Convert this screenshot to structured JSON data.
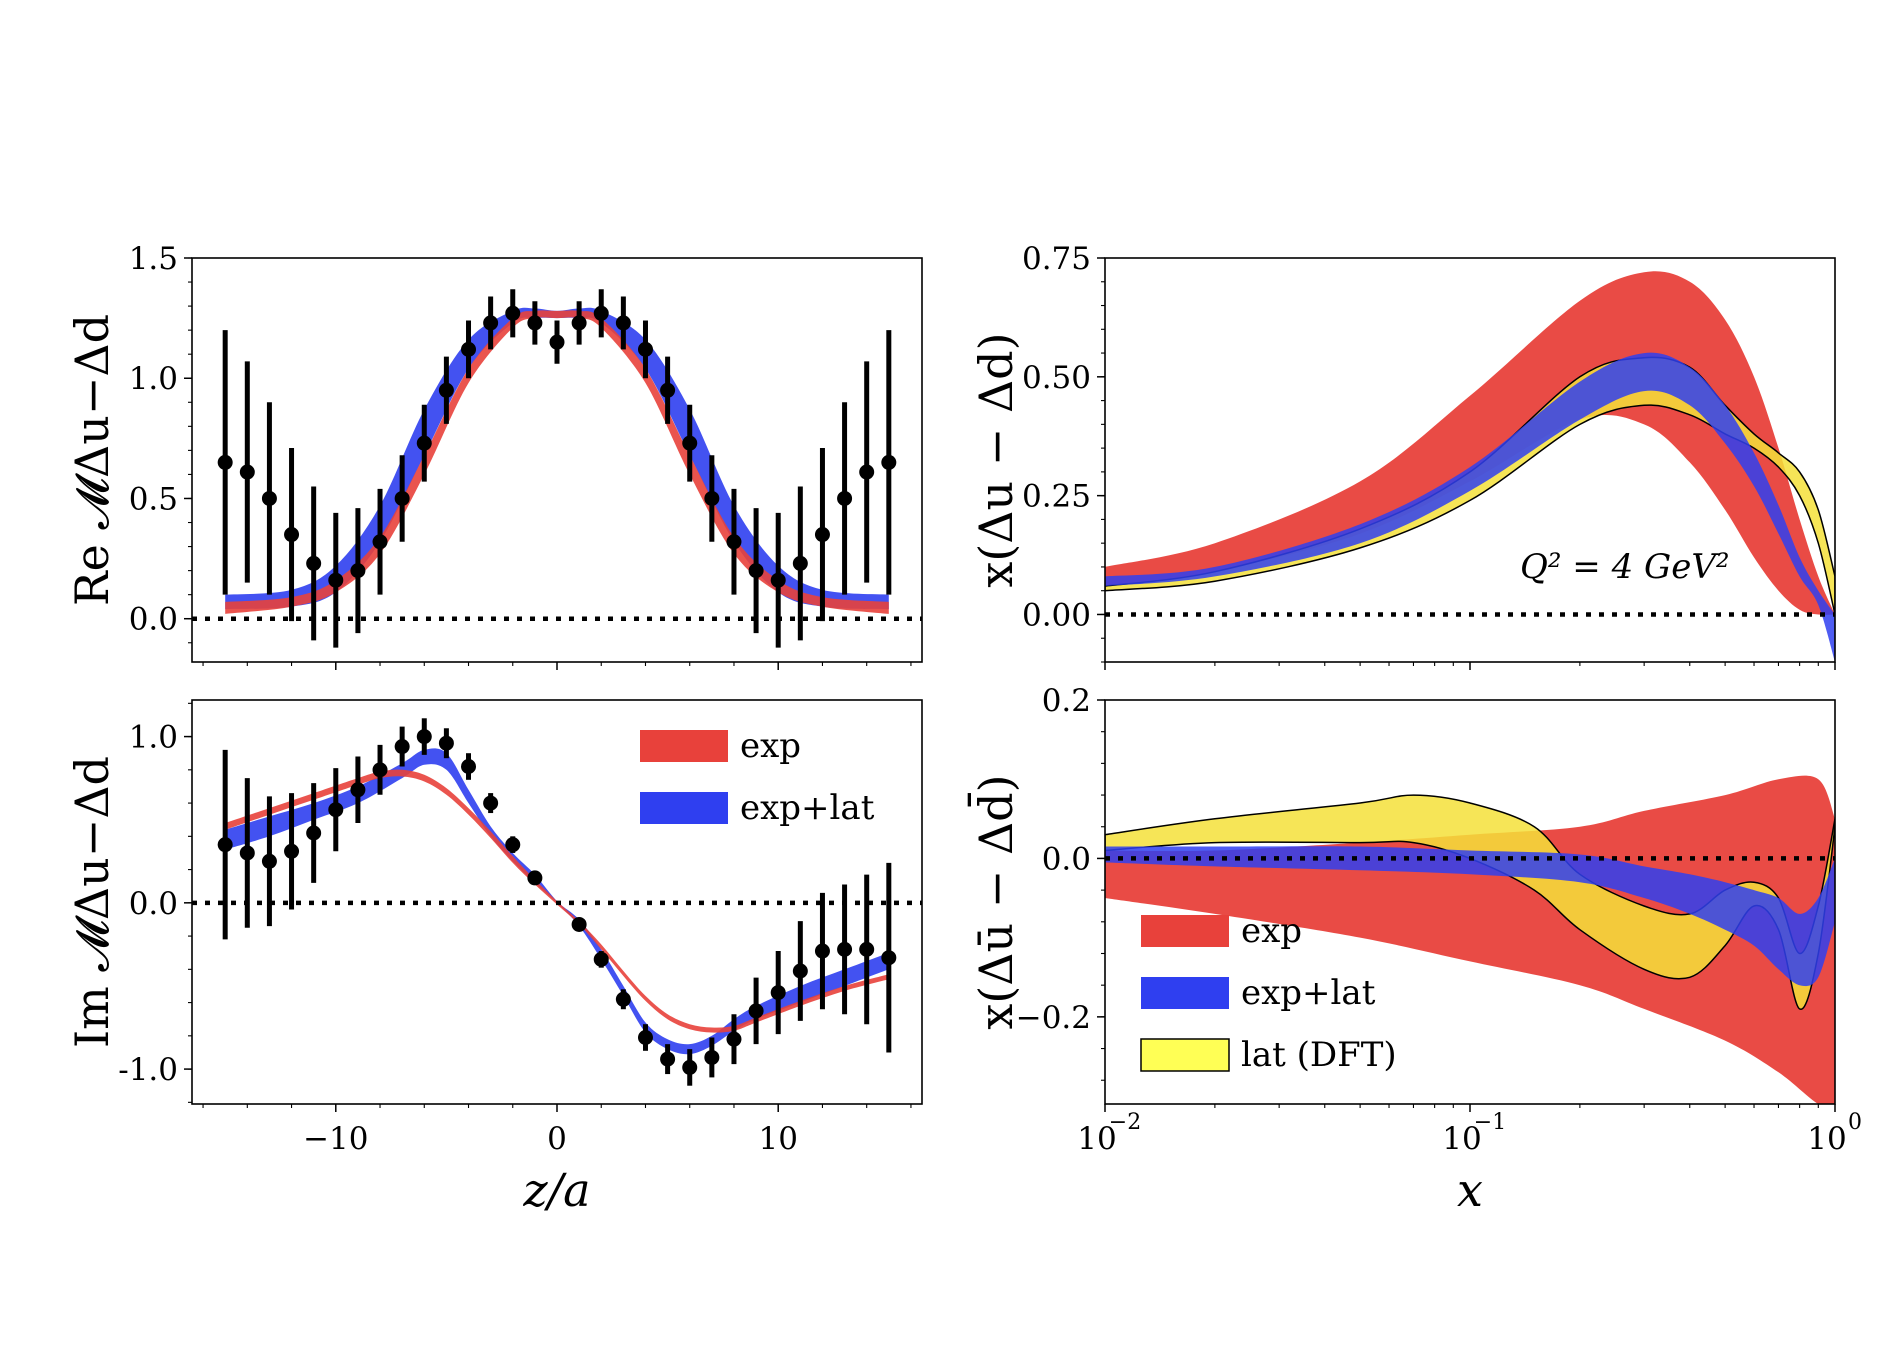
{
  "colors": {
    "exp": "#e8413b",
    "exp_lat": "#2f3ff0",
    "lat_dft": "#f5e13a",
    "lat_dft_light": "#ffff55",
    "points": "#000000"
  },
  "chart_data": [
    {
      "id": "re-matrix-element",
      "type": "line",
      "ylabel": "Re 𝓜Δu−Δd",
      "xlabel": "",
      "xlim": [
        -16.5,
        16.5
      ],
      "ylim": [
        -0.18,
        1.5
      ],
      "yticks": [
        0.0,
        0.5,
        1.0,
        1.5
      ],
      "yticklabels": [
        "0.0",
        "0.5",
        "1.0",
        "1.5"
      ],
      "xticks": [
        -10,
        0,
        10
      ],
      "grid": false,
      "zero_line": true,
      "points": {
        "x": [
          -15,
          -14,
          -13,
          -12,
          -11,
          -10,
          -9,
          -8,
          -7,
          -6,
          -5,
          -4,
          -3,
          -2,
          -1,
          0,
          1,
          2,
          3,
          4,
          5,
          6,
          7,
          8,
          9,
          10,
          11,
          12,
          13,
          14,
          15
        ],
        "y": [
          0.65,
          0.61,
          0.5,
          0.35,
          0.23,
          0.16,
          0.2,
          0.32,
          0.5,
          0.73,
          0.95,
          1.12,
          1.23,
          1.27,
          1.23,
          1.15,
          1.23,
          1.27,
          1.23,
          1.12,
          0.95,
          0.73,
          0.5,
          0.32,
          0.2,
          0.16,
          0.23,
          0.35,
          0.5,
          0.61,
          0.65
        ],
        "err": [
          0.55,
          0.46,
          0.4,
          0.36,
          0.32,
          0.28,
          0.26,
          0.22,
          0.18,
          0.16,
          0.14,
          0.12,
          0.11,
          0.1,
          0.09,
          0.09,
          0.09,
          0.1,
          0.11,
          0.12,
          0.14,
          0.16,
          0.18,
          0.22,
          0.26,
          0.28,
          0.32,
          0.36,
          0.4,
          0.46,
          0.55
        ]
      },
      "series": [
        {
          "name": "exp+lat",
          "x": [
            -15,
            -12,
            -10,
            -8,
            -6,
            -4,
            -2,
            -1,
            0,
            1,
            2,
            4,
            6,
            8,
            10,
            12,
            15
          ],
          "lo": [
            0.04,
            0.05,
            0.11,
            0.32,
            0.68,
            1.04,
            1.23,
            1.25,
            1.25,
            1.25,
            1.23,
            1.04,
            0.68,
            0.32,
            0.11,
            0.05,
            0.04
          ],
          "hi": [
            0.1,
            0.12,
            0.22,
            0.47,
            0.87,
            1.16,
            1.28,
            1.29,
            1.28,
            1.29,
            1.28,
            1.16,
            0.87,
            0.47,
            0.22,
            0.12,
            0.1
          ]
        },
        {
          "name": "exp",
          "x": [
            -15,
            -12,
            -10,
            -8,
            -6,
            -4,
            -2,
            -1,
            0,
            1,
            2,
            4,
            6,
            8,
            10,
            12,
            15
          ],
          "lo": [
            0.02,
            0.05,
            0.11,
            0.27,
            0.6,
            0.98,
            1.21,
            1.25,
            1.25,
            1.25,
            1.21,
            0.98,
            0.6,
            0.27,
            0.11,
            0.05,
            0.02
          ],
          "hi": [
            0.07,
            0.09,
            0.16,
            0.34,
            0.68,
            1.04,
            1.25,
            1.28,
            1.28,
            1.28,
            1.25,
            1.04,
            0.68,
            0.34,
            0.16,
            0.09,
            0.07
          ]
        }
      ]
    },
    {
      "id": "im-matrix-element",
      "type": "line",
      "ylabel": "Im 𝓜Δu−Δd",
      "xlabel": "z/a",
      "xlim": [
        -16.5,
        16.5
      ],
      "ylim": [
        -1.21,
        1.22
      ],
      "yticks": [
        -1.0,
        0.0,
        1.0
      ],
      "yticklabels": [
        "-1.0",
        "0.0",
        "1.0"
      ],
      "xticks": [
        -10,
        0,
        10
      ],
      "xticklabels": [
        "−10",
        "0",
        "10"
      ],
      "grid": false,
      "zero_line": true,
      "legend_position": "upper right",
      "legend": [
        "exp",
        "exp+lat"
      ],
      "points": {
        "x": [
          -15,
          -14,
          -13,
          -12,
          -11,
          -10,
          -9,
          -8,
          -7,
          -6,
          -5,
          -4,
          -3,
          -2,
          -1,
          1,
          2,
          3,
          4,
          5,
          6,
          7,
          8,
          9,
          10,
          11,
          12,
          13,
          14,
          15
        ],
        "y": [
          0.35,
          0.3,
          0.25,
          0.31,
          0.42,
          0.56,
          0.68,
          0.8,
          0.94,
          1.0,
          0.96,
          0.82,
          0.6,
          0.35,
          0.15,
          -0.13,
          -0.34,
          -0.58,
          -0.81,
          -0.94,
          -0.99,
          -0.93,
          -0.82,
          -0.65,
          -0.54,
          -0.41,
          -0.29,
          -0.28,
          -0.28,
          -0.33
        ],
        "err": [
          0.57,
          0.45,
          0.39,
          0.35,
          0.3,
          0.25,
          0.2,
          0.15,
          0.12,
          0.11,
          0.09,
          0.08,
          0.06,
          0.05,
          0.04,
          0.04,
          0.05,
          0.06,
          0.08,
          0.09,
          0.11,
          0.12,
          0.15,
          0.2,
          0.25,
          0.3,
          0.35,
          0.39,
          0.45,
          0.57
        ]
      },
      "series": [
        {
          "name": "exp+lat",
          "x": [
            -15,
            -13,
            -11,
            -9,
            -7,
            -6,
            -5,
            -4,
            -3,
            -2,
            -1,
            0,
            1,
            2,
            3,
            4,
            5,
            6,
            7,
            8,
            9,
            11,
            13,
            15
          ],
          "lo": [
            0.32,
            0.4,
            0.5,
            0.6,
            0.75,
            0.83,
            0.8,
            0.6,
            0.4,
            0.25,
            0.12,
            0.0,
            -0.14,
            -0.34,
            -0.56,
            -0.78,
            -0.88,
            -0.91,
            -0.86,
            -0.77,
            -0.7,
            -0.6,
            -0.5,
            -0.4
          ],
          "hi": [
            0.44,
            0.52,
            0.6,
            0.7,
            0.84,
            0.92,
            0.9,
            0.68,
            0.46,
            0.3,
            0.17,
            0.01,
            -0.1,
            -0.28,
            -0.5,
            -0.72,
            -0.82,
            -0.85,
            -0.8,
            -0.7,
            -0.62,
            -0.5,
            -0.4,
            -0.3
          ]
        },
        {
          "name": "exp",
          "x": [
            -15,
            -13,
            -11,
            -9,
            -8,
            -7,
            -6,
            -5,
            -4,
            -3,
            -2,
            -1,
            0,
            1,
            2,
            3,
            4,
            5,
            6,
            7,
            8,
            9,
            11,
            13,
            15
          ],
          "lo": [
            0.44,
            0.53,
            0.62,
            0.71,
            0.75,
            0.76,
            0.73,
            0.65,
            0.53,
            0.39,
            0.24,
            0.11,
            -0.01,
            -0.13,
            -0.28,
            -0.44,
            -0.59,
            -0.7,
            -0.76,
            -0.78,
            -0.77,
            -0.72,
            -0.62,
            -0.53,
            -0.46
          ],
          "hi": [
            0.48,
            0.57,
            0.66,
            0.75,
            0.79,
            0.8,
            0.77,
            0.69,
            0.57,
            0.43,
            0.28,
            0.14,
            0.01,
            -0.11,
            -0.25,
            -0.41,
            -0.56,
            -0.67,
            -0.73,
            -0.75,
            -0.74,
            -0.69,
            -0.59,
            -0.5,
            -0.43
          ]
        }
      ]
    },
    {
      "id": "x-delta-u-minus-delta-d",
      "type": "area",
      "ylabel": "x(Δu − Δd)",
      "xlabel": "",
      "xscale": "log",
      "xlim": [
        0.01,
        1
      ],
      "ylim": [
        -0.1,
        0.75
      ],
      "yticks": [
        0.0,
        0.25,
        0.5,
        0.75
      ],
      "yticklabels": [
        "0.00",
        "0.25",
        "0.50",
        "0.75"
      ],
      "grid": false,
      "zero_line": true,
      "annotation": "Q² = 4 GeV²",
      "series": [
        {
          "name": "exp",
          "x": [
            0.01,
            0.02,
            0.05,
            0.1,
            0.2,
            0.3,
            0.4,
            0.5,
            0.6,
            0.7,
            0.8,
            0.9,
            1.0
          ],
          "lo": [
            0.06,
            0.09,
            0.17,
            0.28,
            0.41,
            0.4,
            0.32,
            0.22,
            0.12,
            0.05,
            0.01,
            0.0,
            0.0
          ],
          "hi": [
            0.1,
            0.15,
            0.28,
            0.46,
            0.66,
            0.72,
            0.7,
            0.62,
            0.5,
            0.35,
            0.2,
            0.08,
            0.0
          ]
        },
        {
          "name": "lat (DFT)",
          "x": [
            0.01,
            0.02,
            0.05,
            0.1,
            0.2,
            0.3,
            0.4,
            0.5,
            0.6,
            0.7,
            0.8,
            0.9,
            1.0
          ],
          "lo": [
            0.05,
            0.07,
            0.14,
            0.24,
            0.4,
            0.44,
            0.42,
            0.38,
            0.35,
            0.31,
            0.25,
            0.15,
            0.0
          ],
          "hi": [
            0.06,
            0.09,
            0.18,
            0.3,
            0.5,
            0.54,
            0.52,
            0.44,
            0.38,
            0.34,
            0.3,
            0.22,
            0.08
          ]
        },
        {
          "name": "exp+lat",
          "x": [
            0.01,
            0.02,
            0.05,
            0.1,
            0.2,
            0.3,
            0.4,
            0.5,
            0.6,
            0.7,
            0.8,
            0.9,
            1.0
          ],
          "lo": [
            0.06,
            0.08,
            0.15,
            0.26,
            0.41,
            0.47,
            0.44,
            0.36,
            0.27,
            0.17,
            0.08,
            0.02,
            -0.1
          ],
          "hi": [
            0.08,
            0.1,
            0.19,
            0.31,
            0.49,
            0.55,
            0.52,
            0.44,
            0.34,
            0.23,
            0.12,
            0.05,
            0.0
          ]
        }
      ]
    },
    {
      "id": "x-delta-ubar-minus-delta-dbar",
      "type": "area",
      "ylabel": "x(Δū − Δd̄)",
      "xlabel": "x",
      "xscale": "log",
      "xlim": [
        0.01,
        1
      ],
      "ylim": [
        -0.31,
        0.2
      ],
      "yticks": [
        -0.2,
        0.0,
        0.2
      ],
      "yticklabels": [
        "−0.2",
        "0.0",
        "0.2"
      ],
      "xticks": [
        0.01,
        0.1,
        1
      ],
      "xticklabels": [
        "10",
        "10",
        "10"
      ],
      "xtick_exponents": [
        "−2",
        "−1",
        "0"
      ],
      "grid": false,
      "zero_line": true,
      "legend_position": "lower left",
      "legend": [
        "exp",
        "exp+lat",
        "lat (DFT)"
      ],
      "series": [
        {
          "name": "exp",
          "x": [
            0.01,
            0.02,
            0.05,
            0.1,
            0.2,
            0.3,
            0.5,
            0.7,
            0.9,
            1.0
          ],
          "lo": [
            -0.05,
            -0.07,
            -0.1,
            -0.13,
            -0.16,
            -0.19,
            -0.23,
            -0.27,
            -0.31,
            -0.31
          ],
          "hi": [
            0.01,
            0.01,
            0.02,
            0.03,
            0.04,
            0.06,
            0.08,
            0.1,
            0.1,
            0.05
          ]
        },
        {
          "name": "lat (DFT)",
          "x": [
            0.01,
            0.02,
            0.05,
            0.07,
            0.1,
            0.15,
            0.2,
            0.3,
            0.4,
            0.5,
            0.6,
            0.7,
            0.8,
            0.9,
            1.0
          ],
          "lo": [
            0.01,
            0.02,
            0.02,
            0.02,
            0.0,
            -0.04,
            -0.09,
            -0.14,
            -0.15,
            -0.11,
            -0.06,
            -0.09,
            -0.19,
            -0.12,
            0.04
          ],
          "hi": [
            0.03,
            0.05,
            0.07,
            0.08,
            0.07,
            0.04,
            -0.02,
            -0.06,
            -0.07,
            -0.04,
            -0.03,
            -0.05,
            -0.12,
            -0.06,
            0.05
          ]
        },
        {
          "name": "exp+lat",
          "x": [
            0.01,
            0.02,
            0.05,
            0.1,
            0.2,
            0.3,
            0.4,
            0.5,
            0.6,
            0.7,
            0.8,
            0.9,
            1.0
          ],
          "lo": [
            -0.005,
            -0.01,
            -0.015,
            -0.02,
            -0.03,
            -0.05,
            -0.07,
            -0.09,
            -0.11,
            -0.14,
            -0.16,
            -0.15,
            -0.08
          ],
          "hi": [
            0.015,
            0.015,
            0.015,
            0.01,
            0.005,
            -0.01,
            -0.02,
            -0.03,
            -0.04,
            -0.05,
            -0.07,
            -0.05,
            0.0
          ]
        }
      ]
    }
  ]
}
